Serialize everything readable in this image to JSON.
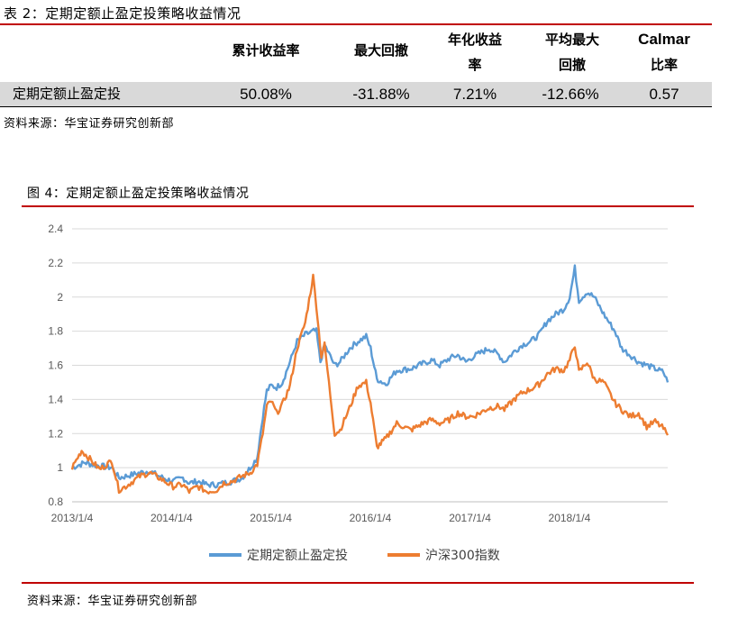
{
  "table": {
    "caption": "表 2：定期定额止盈定投策略收益情况",
    "headers": {
      "cumulative_return": "累计收益率",
      "max_drawdown": "最大回撤",
      "annualized_line1": "年化收益",
      "annualized_line2": "率",
      "avg_max_line1": "平均最大",
      "avg_max_line2": "回撤",
      "calmar_line1": "Calmar",
      "calmar_line2": "比率"
    },
    "row": {
      "name": "定期定额止盈定投",
      "cumulative_return": "50.08%",
      "max_drawdown": "-31.88%",
      "annualized_return": "7.21%",
      "avg_max_drawdown": "-12.66%",
      "calmar_ratio": "0.57"
    },
    "source": "资料来源：华宝证券研究创新部"
  },
  "figure": {
    "caption": "图 4：定期定额止盈定投策略收益情况",
    "source": "资料来源：华宝证券研究创新部"
  },
  "chart_data": {
    "type": "line",
    "title": "",
    "xlabel": "",
    "ylabel": "",
    "ylim": [
      0.8,
      2.4
    ],
    "yticks": [
      "0.8",
      "1",
      "1.2",
      "1.4",
      "1.6",
      "1.8",
      "2",
      "2.2",
      "2.4"
    ],
    "xticks": [
      "2013/1/4",
      "2014/1/4",
      "2015/1/4",
      "2016/1/4",
      "2017/1/4",
      "2018/1/4"
    ],
    "x_start": "2013/1/4",
    "x_end": "2018/12/31",
    "grid": true,
    "legend_position": "bottom",
    "colors": {
      "strategy": "#5b9bd5",
      "index": "#ed7d31",
      "grid": "#d9d9d9"
    },
    "series": [
      {
        "name": "定期定额止盈定投",
        "points": [
          [
            "2013/1/4",
            1.0
          ],
          [
            "2013/2/5",
            1.02
          ],
          [
            "2013/2/20",
            1.03
          ],
          [
            "2013/3/15",
            1.02
          ],
          [
            "2013/4/15",
            1.01
          ],
          [
            "2013/5/30",
            1.0
          ],
          [
            "2013/6/25",
            0.94
          ],
          [
            "2013/7/20",
            0.95
          ],
          [
            "2013/9/10",
            0.97
          ],
          [
            "2013/10/15",
            0.98
          ],
          [
            "2013/11/20",
            0.95
          ],
          [
            "2013/12/20",
            0.93
          ],
          [
            "2014/1/10",
            0.92
          ],
          [
            "2014/2/15",
            0.94
          ],
          [
            "2014/3/10",
            0.91
          ],
          [
            "2014/4/10",
            0.92
          ],
          [
            "2014/5/15",
            0.9
          ],
          [
            "2014/6/20",
            0.9
          ],
          [
            "2014/7/15",
            0.91
          ],
          [
            "2014/8/15",
            0.92
          ],
          [
            "2014/9/20",
            0.94
          ],
          [
            "2014/10/20",
            1.0
          ],
          [
            "2014/11/15",
            1.06
          ],
          [
            "2014/12/5",
            1.3
          ],
          [
            "2014/12/20",
            1.45
          ],
          [
            "2015/1/5",
            1.48
          ],
          [
            "2015/1/25",
            1.47
          ],
          [
            "2015/2/15",
            1.5
          ],
          [
            "2015/3/15",
            1.62
          ],
          [
            "2015/4/10",
            1.74
          ],
          [
            "2015/5/10",
            1.78
          ],
          [
            "2015/6/10",
            1.8
          ],
          [
            "2015/6/20",
            1.8
          ],
          [
            "2015/7/5",
            1.62
          ],
          [
            "2015/7/20",
            1.72
          ],
          [
            "2015/8/26",
            1.6
          ],
          [
            "2015/9/15",
            1.62
          ],
          [
            "2015/10/20",
            1.7
          ],
          [
            "2015/11/20",
            1.74
          ],
          [
            "2015/12/20",
            1.77
          ],
          [
            "2016/1/5",
            1.7
          ],
          [
            "2016/1/28",
            1.52
          ],
          [
            "2016/3/1",
            1.49
          ],
          [
            "2016/4/10",
            1.57
          ],
          [
            "2016/6/1",
            1.58
          ],
          [
            "2016/7/15",
            1.61
          ],
          [
            "2016/8/15",
            1.63
          ],
          [
            "2016/9/15",
            1.6
          ],
          [
            "2016/10/20",
            1.64
          ],
          [
            "2016/11/20",
            1.66
          ],
          [
            "2016/12/20",
            1.62
          ],
          [
            "2017/1/15",
            1.65
          ],
          [
            "2017/2/20",
            1.68
          ],
          [
            "2017/3/15",
            1.7
          ],
          [
            "2017/4/20",
            1.66
          ],
          [
            "2017/5/10",
            1.62
          ],
          [
            "2017/6/15",
            1.68
          ],
          [
            "2017/7/15",
            1.72
          ],
          [
            "2017/8/15",
            1.74
          ],
          [
            "2017/9/15",
            1.78
          ],
          [
            "2017/10/15",
            1.86
          ],
          [
            "2017/11/15",
            1.9
          ],
          [
            "2017/12/15",
            1.93
          ],
          [
            "2018/1/5",
            2.0
          ],
          [
            "2018/1/24",
            2.17
          ],
          [
            "2018/2/8",
            1.98
          ],
          [
            "2018/3/10",
            2.03
          ],
          [
            "2018/4/5",
            2.0
          ],
          [
            "2018/5/10",
            1.9
          ],
          [
            "2018/6/20",
            1.8
          ],
          [
            "2018/7/15",
            1.7
          ],
          [
            "2018/8/15",
            1.66
          ],
          [
            "2018/9/15",
            1.62
          ],
          [
            "2018/10/15",
            1.6
          ],
          [
            "2018/11/15",
            1.58
          ],
          [
            "2018/12/15",
            1.56
          ],
          [
            "2018/12/31",
            1.5
          ]
        ]
      },
      {
        "name": "沪深300指数",
        "points": [
          [
            "2013/1/4",
            1.0
          ],
          [
            "2013/1/25",
            1.06
          ],
          [
            "2013/2/8",
            1.1
          ],
          [
            "2013/3/5",
            1.06
          ],
          [
            "2013/4/15",
            0.99
          ],
          [
            "2013/5/30",
            1.04
          ],
          [
            "2013/6/25",
            0.87
          ],
          [
            "2013/7/20",
            0.89
          ],
          [
            "2013/9/10",
            0.95
          ],
          [
            "2013/10/15",
            0.97
          ],
          [
            "2013/11/20",
            0.94
          ],
          [
            "2013/12/20",
            0.91
          ],
          [
            "2014/1/10",
            0.89
          ],
          [
            "2014/2/15",
            0.9
          ],
          [
            "2014/3/10",
            0.86
          ],
          [
            "2014/4/10",
            0.89
          ],
          [
            "2014/5/15",
            0.86
          ],
          [
            "2014/6/20",
            0.87
          ],
          [
            "2014/7/15",
            0.91
          ],
          [
            "2014/8/15",
            0.92
          ],
          [
            "2014/9/20",
            0.95
          ],
          [
            "2014/10/20",
            0.97
          ],
          [
            "2014/11/15",
            1.02
          ],
          [
            "2014/12/5",
            1.2
          ],
          [
            "2014/12/20",
            1.36
          ],
          [
            "2015/1/5",
            1.39
          ],
          [
            "2015/1/25",
            1.32
          ],
          [
            "2015/2/15",
            1.37
          ],
          [
            "2015/3/15",
            1.48
          ],
          [
            "2015/4/10",
            1.7
          ],
          [
            "2015/5/10",
            1.85
          ],
          [
            "2015/6/8",
            2.12
          ],
          [
            "2015/6/20",
            1.95
          ],
          [
            "2015/7/8",
            1.65
          ],
          [
            "2015/7/20",
            1.72
          ],
          [
            "2015/8/26",
            1.2
          ],
          [
            "2015/9/15",
            1.22
          ],
          [
            "2015/10/20",
            1.35
          ],
          [
            "2015/11/20",
            1.48
          ],
          [
            "2015/12/20",
            1.5
          ],
          [
            "2016/1/5",
            1.38
          ],
          [
            "2016/1/28",
            1.12
          ],
          [
            "2016/3/1",
            1.17
          ],
          [
            "2016/4/10",
            1.26
          ],
          [
            "2016/6/1",
            1.22
          ],
          [
            "2016/7/15",
            1.26
          ],
          [
            "2016/8/15",
            1.28
          ],
          [
            "2016/9/15",
            1.26
          ],
          [
            "2016/10/20",
            1.28
          ],
          [
            "2016/11/20",
            1.32
          ],
          [
            "2016/12/20",
            1.3
          ],
          [
            "2017/1/15",
            1.3
          ],
          [
            "2017/2/20",
            1.33
          ],
          [
            "2017/3/15",
            1.35
          ],
          [
            "2017/4/20",
            1.36
          ],
          [
            "2017/5/10",
            1.34
          ],
          [
            "2017/6/15",
            1.4
          ],
          [
            "2017/7/15",
            1.44
          ],
          [
            "2017/8/15",
            1.46
          ],
          [
            "2017/9/15",
            1.49
          ],
          [
            "2017/10/15",
            1.55
          ],
          [
            "2017/11/15",
            1.58
          ],
          [
            "2017/12/15",
            1.57
          ],
          [
            "2018/1/5",
            1.63
          ],
          [
            "2018/1/24",
            1.72
          ],
          [
            "2018/2/8",
            1.56
          ],
          [
            "2018/3/10",
            1.62
          ],
          [
            "2018/4/5",
            1.52
          ],
          [
            "2018/5/10",
            1.5
          ],
          [
            "2018/6/20",
            1.38
          ],
          [
            "2018/7/15",
            1.34
          ],
          [
            "2018/8/15",
            1.3
          ],
          [
            "2018/9/15",
            1.32
          ],
          [
            "2018/10/15",
            1.24
          ],
          [
            "2018/11/15",
            1.27
          ],
          [
            "2018/12/15",
            1.23
          ],
          [
            "2018/12/31",
            1.19
          ]
        ]
      }
    ]
  }
}
